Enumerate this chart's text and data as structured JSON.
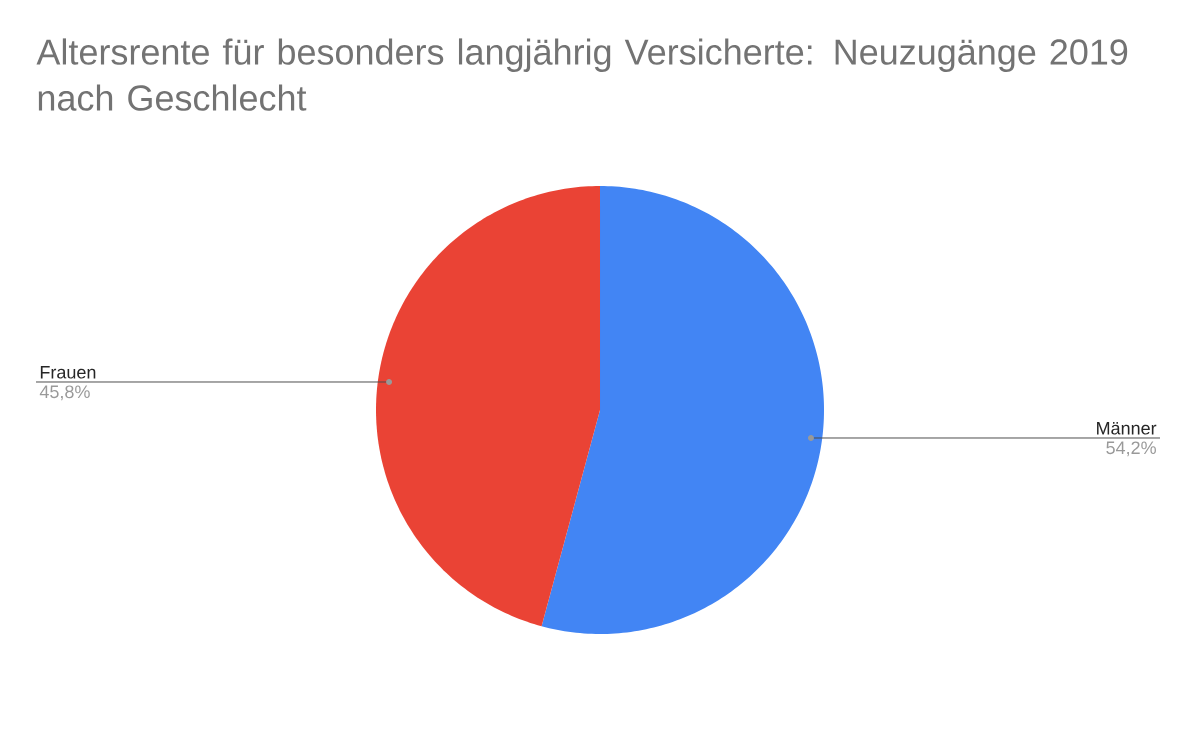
{
  "chart_data": {
    "type": "pie",
    "title": "Altersrente für besonders langjährig Versicherte: Neuzugänge 2019 nach Geschlecht",
    "categories": [
      "Männer",
      "Frauen"
    ],
    "values": [
      54.2,
      45.8
    ],
    "value_labels": [
      "54,2%",
      "45,8%"
    ],
    "colors": [
      "#4285f4",
      "#ea4335"
    ],
    "legend": false
  }
}
